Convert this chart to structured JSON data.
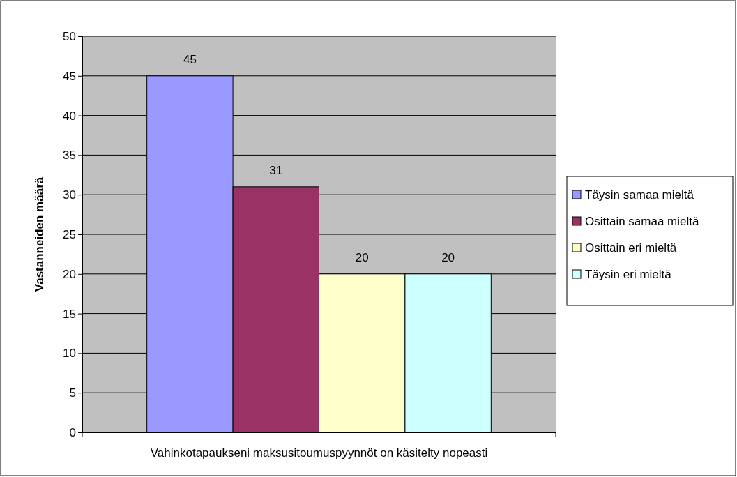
{
  "chart_data": {
    "type": "bar",
    "ylabel": "Vastanneiden määrä",
    "categories": [
      "Vahinkotapaukseni maksusitoumuspyynnöt on käsitelty nopeasti"
    ],
    "series": [
      {
        "name": "Täysin samaa mieltä",
        "color": "#9999ff",
        "values": [
          45
        ]
      },
      {
        "name": "Osittain samaa mieltä",
        "color": "#993366",
        "values": [
          31
        ]
      },
      {
        "name": "Osittain eri mieltä",
        "color": "#ffffcc",
        "values": [
          20
        ]
      },
      {
        "name": "Täysin eri mieltä",
        "color": "#ccffff",
        "values": [
          20
        ]
      }
    ],
    "ylim": [
      0,
      50
    ],
    "yticks": [
      0,
      5,
      10,
      15,
      20,
      25,
      30,
      35,
      40,
      45,
      50
    ],
    "grid": "y",
    "legend": "right",
    "data_labels": true
  }
}
